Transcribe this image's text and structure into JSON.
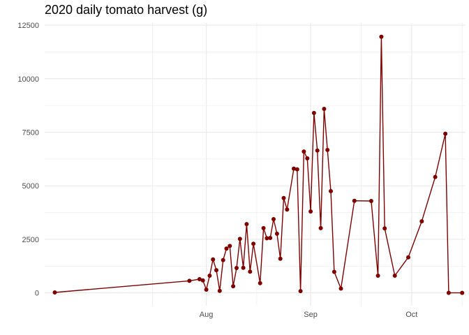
{
  "chart_data": {
    "type": "line",
    "title": "2020 daily tomato harvest (g)",
    "xlabel": "",
    "ylabel": "",
    "x_scale": "date",
    "xlim": [
      "2020-06-14",
      "2020-10-17"
    ],
    "ylim": [
      -600,
      12600
    ],
    "grid": true,
    "legend": "none",
    "colors": {
      "line": "#800000",
      "point": "#800000",
      "grid": "#ebebeb",
      "background": "#ffffff"
    },
    "x_ticks": [
      {
        "date": "2020-08-01",
        "label": "Aug"
      },
      {
        "date": "2020-09-01",
        "label": "Sep"
      },
      {
        "date": "2020-10-01",
        "label": "Oct"
      }
    ],
    "x_minor_ticks": [
      "2020-07-16",
      "2020-08-16",
      "2020-09-16",
      "2020-10-16"
    ],
    "y_ticks": [
      {
        "value": 0,
        "label": "0"
      },
      {
        "value": 2500,
        "label": "2500"
      },
      {
        "value": 5000,
        "label": "5000"
      },
      {
        "value": 7500,
        "label": "7500"
      },
      {
        "value": 10000,
        "label": "10000"
      },
      {
        "value": 12500,
        "label": "12500"
      }
    ],
    "y_minor_ticks": [
      1250,
      3750,
      6250,
      8750,
      11250
    ],
    "series": [
      {
        "x": [
          "2020-06-17",
          "2020-07-27",
          "2020-07-30",
          "2020-07-31",
          "2020-08-01",
          "2020-08-02",
          "2020-08-03",
          "2020-08-04",
          "2020-08-05",
          "2020-08-06",
          "2020-08-07",
          "2020-08-08",
          "2020-08-09",
          "2020-08-10",
          "2020-08-11",
          "2020-08-12",
          "2020-08-13",
          "2020-08-14",
          "2020-08-15",
          "2020-08-17",
          "2020-08-18",
          "2020-08-19",
          "2020-08-20",
          "2020-08-21",
          "2020-08-22",
          "2020-08-23",
          "2020-08-24",
          "2020-08-25",
          "2020-08-27",
          "2020-08-28",
          "2020-08-29",
          "2020-08-30",
          "2020-08-31",
          "2020-09-01",
          "2020-09-02",
          "2020-09-03",
          "2020-09-04",
          "2020-09-05",
          "2020-09-06",
          "2020-09-07",
          "2020-09-08",
          "2020-09-10",
          "2020-09-14",
          "2020-09-19",
          "2020-09-21",
          "2020-09-22",
          "2020-09-23",
          "2020-09-26",
          "2020-09-30",
          "2020-10-04",
          "2020-10-08",
          "2020-10-11",
          "2020-10-12",
          "2020-10-16"
        ],
        "y": [
          20,
          560,
          640,
          580,
          150,
          800,
          1560,
          1060,
          90,
          1530,
          2070,
          2190,
          310,
          1160,
          2520,
          1170,
          3210,
          990,
          2290,
          450,
          3020,
          2550,
          2560,
          3440,
          2760,
          1590,
          4430,
          3890,
          5800,
          5770,
          80,
          6600,
          6280,
          3800,
          8400,
          6650,
          3020,
          8590,
          6670,
          4750,
          980,
          200,
          4300,
          4290,
          800,
          11960,
          3010,
          800,
          1660,
          3340,
          5410,
          7430,
          0,
          0
        ]
      }
    ]
  }
}
